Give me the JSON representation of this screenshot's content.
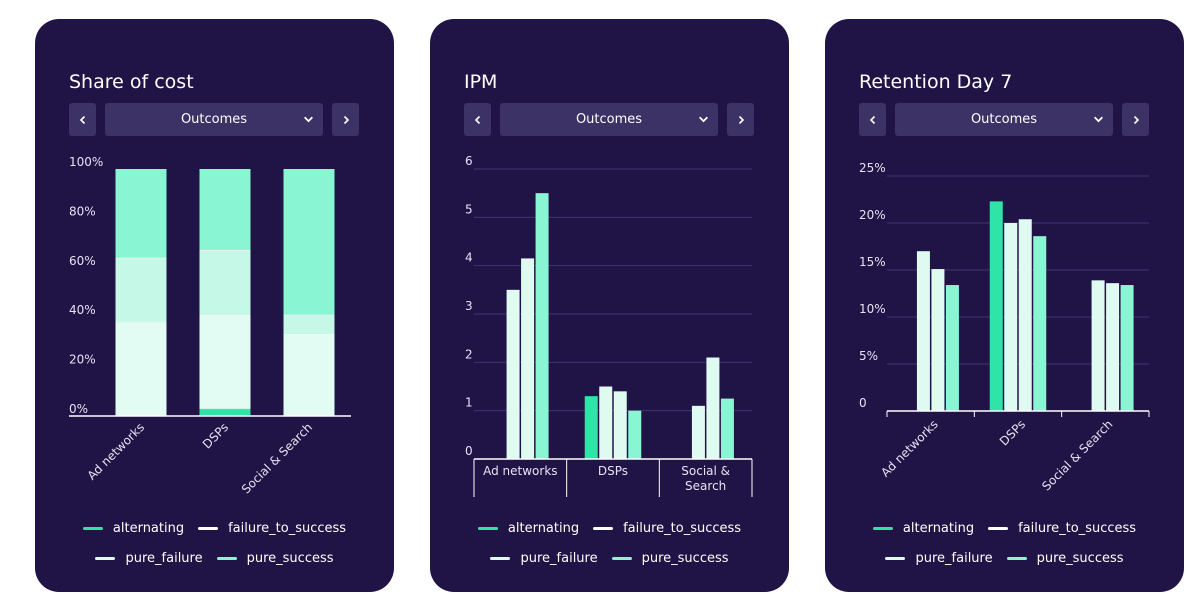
{
  "colors": {
    "alternating": "#2ee5a7",
    "failure_to_success": "#ffffff",
    "pure_failure": "#dffbf1",
    "pure_success": "#8af5d3",
    "share_pure_success": "#8af5d3",
    "share_pure_failure": "#c5f8e6",
    "share_failure_to_success": "#e3fcf3",
    "share_alternating": "#2ee5a7"
  },
  "legend": {
    "alternating": "alternating",
    "failure_to_success": "failure_to_success",
    "pure_failure": "pure_failure",
    "pure_success": "pure_success"
  },
  "cards": [
    {
      "title": "Share of cost",
      "dropdown": "Outcomes",
      "prev_icon": "chevron-left-icon",
      "next_icon": "chevron-right-icon",
      "dropdown_icon": "chevron-down-icon"
    },
    {
      "title": "IPM",
      "dropdown": "Outcomes",
      "prev_icon": "chevron-left-icon",
      "next_icon": "chevron-right-icon",
      "dropdown_icon": "chevron-down-icon"
    },
    {
      "title": "Retention Day 7",
      "dropdown": "Outcomes",
      "prev_icon": "chevron-left-icon",
      "next_icon": "chevron-right-icon",
      "dropdown_icon": "chevron-down-icon"
    }
  ],
  "chart_data": [
    {
      "type": "bar",
      "stacked": true,
      "title": "Share of cost",
      "categories": [
        "Ad networks",
        "DSPs",
        "Social & Search"
      ],
      "ylim": [
        0,
        100
      ],
      "yticks": [
        "0%",
        "20%",
        "40%",
        "60%",
        "80%",
        "100%"
      ],
      "series": [
        {
          "name": "alternating",
          "values": [
            0,
            3,
            0
          ]
        },
        {
          "name": "failure_to_success",
          "values": [
            38,
            38,
            33
          ]
        },
        {
          "name": "pure_failure",
          "values": [
            26,
            26,
            8
          ]
        },
        {
          "name": "pure_success",
          "values": [
            36,
            33,
            59
          ]
        }
      ],
      "legend_position": "bottom"
    },
    {
      "type": "bar",
      "title": "IPM",
      "categories": [
        "Ad networks",
        "DSPs",
        "Social & Search"
      ],
      "category_lines": [
        [
          "Ad networks"
        ],
        [
          "DSPs"
        ],
        [
          "Social &",
          "Search"
        ]
      ],
      "ylim": [
        0,
        6
      ],
      "yticks": [
        "0",
        "1",
        "2",
        "3",
        "4",
        "5",
        "6"
      ],
      "series": [
        {
          "name": "alternating",
          "values": [
            null,
            1.3,
            null
          ]
        },
        {
          "name": "failure_to_success",
          "values": [
            3.5,
            1.5,
            1.1
          ]
        },
        {
          "name": "pure_failure",
          "values": [
            4.15,
            1.4,
            2.1
          ]
        },
        {
          "name": "pure_success",
          "values": [
            5.5,
            1.0,
            1.25
          ]
        }
      ],
      "legend_position": "bottom"
    },
    {
      "type": "bar",
      "title": "Retention Day 7",
      "categories": [
        "Ad networks",
        "DSPs",
        "Social & Search"
      ],
      "ylim": [
        0,
        25
      ],
      "yticks": [
        "0",
        "5%",
        "10%",
        "15%",
        "20%",
        "25%"
      ],
      "series": [
        {
          "name": "alternating",
          "values": [
            null,
            22.3,
            null
          ]
        },
        {
          "name": "failure_to_success",
          "values": [
            17.0,
            20.0,
            13.9
          ]
        },
        {
          "name": "pure_failure",
          "values": [
            15.1,
            20.4,
            13.6
          ]
        },
        {
          "name": "pure_success",
          "values": [
            13.4,
            18.6,
            13.4
          ]
        }
      ],
      "legend_position": "bottom"
    }
  ]
}
